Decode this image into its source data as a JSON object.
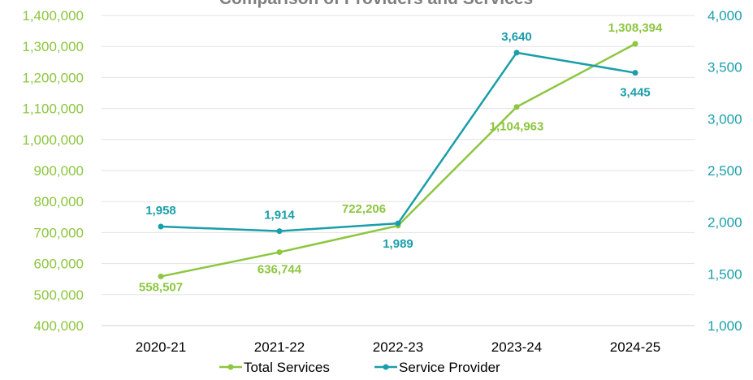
{
  "chart_data": {
    "type": "line",
    "title": "Comparison of Providers and Services",
    "categories": [
      "2020-21",
      "2021-22",
      "2022-23",
      "2023-24",
      "2024-25"
    ],
    "series": [
      {
        "name": "Total Services",
        "axis": "left",
        "color": "#8dc63f",
        "values": [
          558507,
          636744,
          722206,
          1104963,
          1308394
        ],
        "labels": [
          "558,507",
          "636,744",
          "722,206",
          "1,104,963",
          "1,308,394"
        ]
      },
      {
        "name": "Service Provider",
        "axis": "right",
        "color": "#1a9eaa",
        "values": [
          1958,
          1914,
          1989,
          3640,
          3445
        ],
        "labels": [
          "1,958",
          "1,914",
          "1,989",
          "3,640",
          "3,445"
        ]
      }
    ],
    "y_left": {
      "ylim": [
        400000,
        1400000
      ],
      "ticks": [
        "400,000",
        "500,000",
        "600,000",
        "700,000",
        "800,000",
        "900,000",
        "1,000,000",
        "1,100,000",
        "1,200,000",
        "1,300,000",
        "1,400,000"
      ],
      "color": "#8dc63f"
    },
    "y_right": {
      "ylim": [
        1000,
        4000
      ],
      "ticks": [
        "1,000",
        "1,500",
        "2,000",
        "2,500",
        "3,000",
        "3,500",
        "4,000"
      ],
      "color": "#1a9eaa"
    },
    "grid": true,
    "legend_position": "bottom"
  }
}
